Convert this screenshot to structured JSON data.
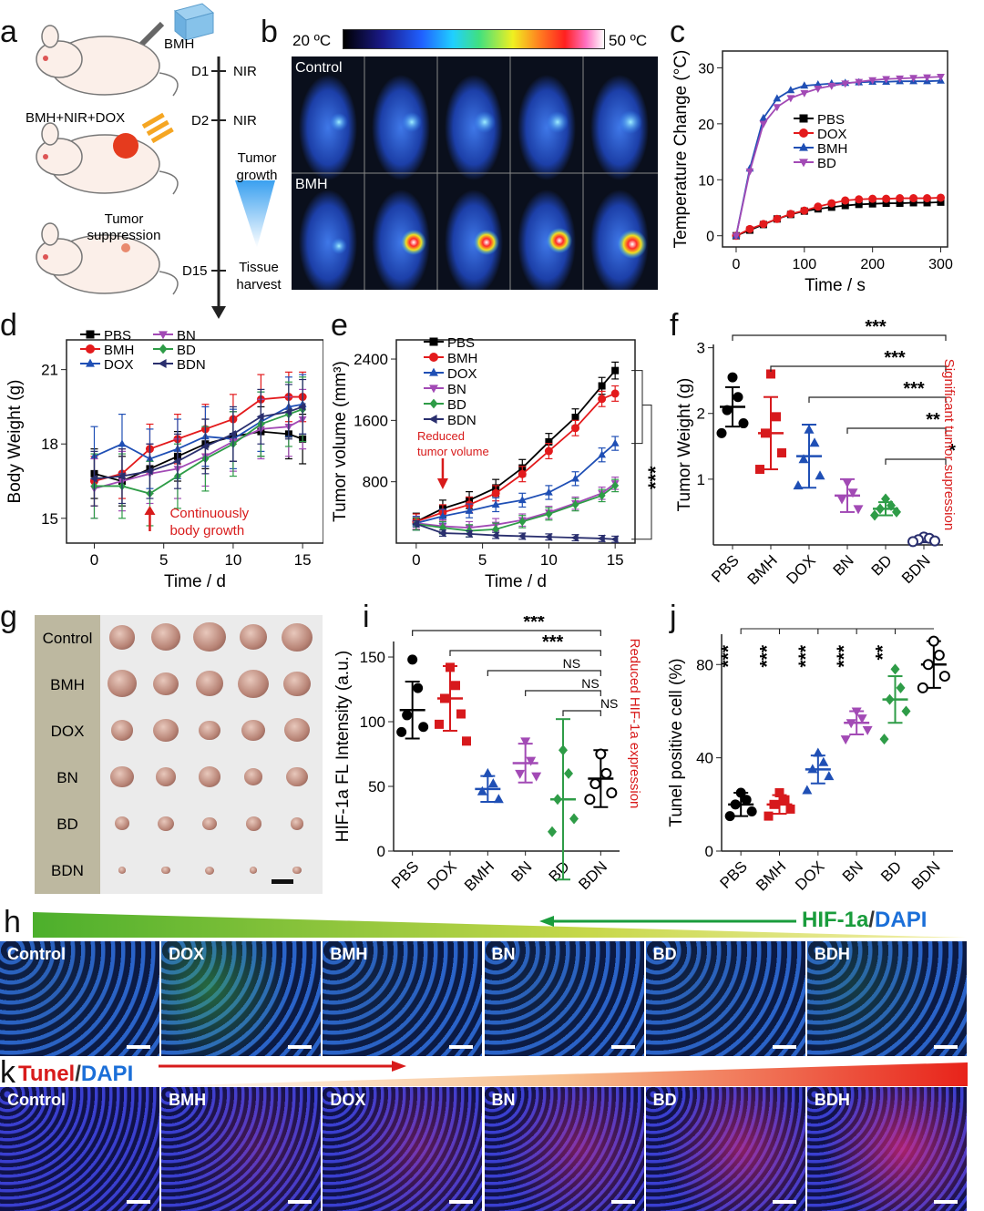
{
  "panel_letters": [
    "a",
    "b",
    "c",
    "d",
    "e",
    "f",
    "g",
    "h",
    "i",
    "j",
    "k"
  ],
  "panel_a": {
    "inject_label": "BMH",
    "group_label": "BMH+NIR+DOX",
    "suppression_label": "Tumor suppression",
    "timeline": [
      {
        "day": "D1",
        "event": "NIR"
      },
      {
        "day": "D2",
        "event": "NIR"
      },
      {
        "day": "D15",
        "event": "Tissue harvest"
      }
    ],
    "growth_label": "Tumor growth"
  },
  "panel_b": {
    "scale_min": "20 ºC",
    "scale_max": "50 ºC",
    "rows": [
      "Control",
      "BMH"
    ],
    "colors": {
      "cold": "#000000",
      "warm": "#ff2a2a",
      "hot": "#ffffff"
    }
  },
  "panel_g": {
    "rows": [
      "Control",
      "BMH",
      "DOX",
      "BN",
      "BD",
      "BDN"
    ],
    "tumor_sizes": [
      1.0,
      0.95,
      0.8,
      0.72,
      0.5,
      0.28
    ]
  },
  "panel_h": {
    "legend_a": "HIF-1a",
    "legend_sep": "/",
    "legend_b": "DAPI",
    "tiles": [
      "Control",
      "DOX",
      "BMH",
      "BN",
      "BD",
      "BDH"
    ]
  },
  "panel_k": {
    "legend_a": "Tunel",
    "legend_sep": "/",
    "legend_b": "DAPI",
    "tiles": [
      "Control",
      "BMH",
      "DOX",
      "BN",
      "BD",
      "BDH"
    ]
  },
  "chart_data": [
    {
      "id": "c",
      "type": "line",
      "xlabel": "Time / s",
      "ylabel": "Temperature Change (°C)",
      "xlim": [
        -20,
        310
      ],
      "ylim": [
        -2,
        33
      ],
      "xticks": [
        0,
        100,
        200,
        300
      ],
      "yticks": [
        0,
        10,
        20,
        30
      ],
      "legend_position": "middle-right",
      "x": [
        0,
        20,
        40,
        60,
        80,
        100,
        120,
        140,
        160,
        180,
        200,
        220,
        240,
        260,
        280,
        300
      ],
      "series": [
        {
          "name": "PBS",
          "color": "#000000",
          "marker": "square",
          "values": [
            0,
            1.0,
            2.0,
            3.0,
            3.8,
            4.4,
            4.8,
            5.1,
            5.4,
            5.6,
            5.7,
            5.8,
            5.8,
            5.9,
            5.9,
            6.0
          ]
        },
        {
          "name": "DOX",
          "color": "#e31a1c",
          "marker": "circle",
          "values": [
            0,
            1.2,
            2.1,
            3.0,
            3.9,
            4.5,
            5.2,
            5.8,
            6.3,
            6.5,
            6.6,
            6.6,
            6.7,
            6.7,
            6.7,
            6.8
          ]
        },
        {
          "name": "BMH",
          "color": "#1f4fb5",
          "marker": "triangle",
          "values": [
            0,
            12,
            21,
            24.5,
            26,
            26.8,
            27,
            27.2,
            27.3,
            27.4,
            27.5,
            27.5,
            27.6,
            27.6,
            27.6,
            27.7
          ]
        },
        {
          "name": "BD",
          "color": "#a24ab5",
          "marker": "triangle-down",
          "values": [
            0,
            11.5,
            20,
            23,
            24.6,
            25.5,
            26.3,
            26.8,
            27.2,
            27.5,
            27.8,
            28,
            28.1,
            28.2,
            28.3,
            28.4
          ]
        }
      ]
    },
    {
      "id": "d",
      "type": "line",
      "xlabel": "Time / d",
      "ylabel": "Body Weight (g)",
      "xlim": [
        -2,
        16.5
      ],
      "ylim": [
        14,
        22.2
      ],
      "xticks": [
        0,
        5,
        10,
        15
      ],
      "yticks": [
        15,
        18,
        21
      ],
      "legend_position": "top-left",
      "annotation": "Continuously body growth",
      "annotation_x": 4,
      "x": [
        0,
        2,
        4,
        6,
        8,
        10,
        12,
        14,
        15
      ],
      "series": [
        {
          "name": "PBS",
          "color": "#000000",
          "marker": "square",
          "values": [
            16.8,
            16.5,
            17.0,
            17.5,
            18.0,
            18.3,
            18.5,
            18.4,
            18.2
          ],
          "err": 1.0
        },
        {
          "name": "BMH",
          "color": "#e31a1c",
          "marker": "circle",
          "values": [
            16.5,
            16.8,
            17.8,
            18.2,
            18.6,
            19.0,
            19.8,
            19.9,
            19.9
          ],
          "err": 1.0
        },
        {
          "name": "DOX",
          "color": "#1f4fb5",
          "marker": "triangle",
          "values": [
            17.5,
            18.0,
            17.4,
            17.8,
            18.3,
            18.2,
            18.9,
            19.5,
            19.6
          ],
          "err": 1.2
        },
        {
          "name": "BN",
          "color": "#a24ab5",
          "marker": "triangle-down",
          "values": [
            16.2,
            16.5,
            16.8,
            17.0,
            17.5,
            18.1,
            18.6,
            18.7,
            19.0
          ],
          "err": 1.2
        },
        {
          "name": "BD",
          "color": "#2e9c47",
          "marker": "diamond",
          "values": [
            16.3,
            16.3,
            16.0,
            16.7,
            17.4,
            18.0,
            18.8,
            19.2,
            19.4
          ],
          "err": 1.3
        },
        {
          "name": "BDN",
          "color": "#2a2f6e",
          "marker": "triangle-left",
          "values": [
            16.6,
            16.7,
            16.9,
            17.3,
            17.9,
            18.4,
            19.1,
            19.3,
            19.5
          ],
          "err": 1.1
        }
      ]
    },
    {
      "id": "e",
      "type": "line",
      "xlabel": "Time / d",
      "ylabel": "Tumor volume (mm³)",
      "xlim": [
        -1.5,
        16.5
      ],
      "ylim": [
        0,
        2650
      ],
      "xticks": [
        0,
        5,
        10,
        15
      ],
      "yticks": [
        800,
        1600,
        2400
      ],
      "legend_position": "top-left",
      "annotation": "Reduced tumor volume",
      "annotation_x": 2,
      "significance": "***",
      "x": [
        0,
        2,
        4,
        6,
        8,
        10,
        12,
        14,
        15
      ],
      "series": [
        {
          "name": "PBS",
          "color": "#000000",
          "marker": "square",
          "values": [
            280,
            450,
            560,
            720,
            980,
            1320,
            1640,
            2050,
            2250
          ],
          "err": 110
        },
        {
          "name": "BMH",
          "color": "#e31a1c",
          "marker": "circle",
          "values": [
            280,
            400,
            500,
            650,
            900,
            1200,
            1500,
            1880,
            1950
          ],
          "err": 100
        },
        {
          "name": "DOX",
          "color": "#1f4fb5",
          "marker": "triangle",
          "values": [
            260,
            350,
            420,
            500,
            560,
            660,
            840,
            1150,
            1300
          ],
          "err": 90
        },
        {
          "name": "BN",
          "color": "#a24ab5",
          "marker": "triangle-down",
          "values": [
            260,
            220,
            200,
            240,
            300,
            400,
            520,
            650,
            780
          ],
          "err": 80
        },
        {
          "name": "BD",
          "color": "#2e9c47",
          "marker": "diamond",
          "values": [
            250,
            200,
            160,
            180,
            280,
            380,
            500,
            620,
            750
          ],
          "err": 80
        },
        {
          "name": "BDN",
          "color": "#2a2f6e",
          "marker": "triangle-left",
          "values": [
            250,
            130,
            120,
            100,
            90,
            80,
            70,
            60,
            50
          ],
          "err": 40
        }
      ]
    },
    {
      "id": "f",
      "type": "scatter",
      "xlabel": "",
      "ylabel": "Tumor Weight (g)",
      "categories": [
        "PBS",
        "BMH",
        "DOX",
        "BN",
        "BD",
        "BDN"
      ],
      "ylim": [
        0,
        3.05
      ],
      "yticks": [
        1,
        2,
        3
      ],
      "side_note": "Significant tumor supression",
      "colors": [
        "#000000",
        "#d7191c",
        "#1f4fb5",
        "#a24ab5",
        "#2e9c47",
        "#2a2f6e"
      ],
      "markers": [
        "circle",
        "square",
        "triangle",
        "triangle-down",
        "diamond",
        "circle-open"
      ],
      "mean": [
        2.1,
        1.7,
        1.35,
        0.75,
        0.55,
        0.08
      ],
      "sd": [
        0.3,
        0.55,
        0.48,
        0.25,
        0.1,
        0.04
      ],
      "points": [
        [
          2.55,
          2.25,
          2.05,
          1.85,
          1.7
        ],
        [
          2.6,
          1.95,
          1.7,
          1.4,
          1.15
        ],
        [
          1.75,
          1.55,
          1.3,
          1.05,
          0.9
        ],
        [
          0.95,
          0.8,
          0.7,
          0.55
        ],
        [
          0.7,
          0.6,
          0.55,
          0.5,
          0.45
        ],
        [
          0.12,
          0.1,
          0.08,
          0.06,
          0.05
        ]
      ],
      "brackets": [
        {
          "from": 0,
          "to": 5,
          "label": "***"
        },
        {
          "from": 1,
          "to": 5,
          "label": "***"
        },
        {
          "from": 2,
          "to": 5,
          "label": "***"
        },
        {
          "from": 3,
          "to": 5,
          "label": "**"
        },
        {
          "from": 4,
          "to": 5,
          "label": "*"
        }
      ]
    },
    {
      "id": "i",
      "type": "scatter",
      "xlabel": "",
      "ylabel": "HIF-1a FL Intensity (a.u.)",
      "categories": [
        "PBS",
        "DOX",
        "BMH",
        "BN",
        "BD",
        "BDN"
      ],
      "ylim": [
        0,
        162
      ],
      "yticks": [
        0,
        50,
        100,
        150
      ],
      "side_note": "Reduced HIF-1a expression",
      "colors": [
        "#000000",
        "#d7191c",
        "#1f4fb5",
        "#a24ab5",
        "#2e9c47",
        "#000000"
      ],
      "markers": [
        "circle",
        "square",
        "triangle",
        "triangle-down",
        "diamond",
        "circle-open"
      ],
      "mean": [
        109,
        118,
        48,
        68,
        40,
        56
      ],
      "sd": [
        22,
        25,
        10,
        15,
        62,
        22
      ],
      "points": [
        [
          148,
          126,
          105,
          96,
          92
        ],
        [
          142,
          128,
          118,
          106,
          98,
          85
        ],
        [
          60,
          52,
          46,
          40
        ],
        [
          85,
          70,
          60,
          58
        ],
        [
          78,
          60,
          40,
          25,
          15
        ],
        [
          75,
          60,
          52,
          45,
          40
        ]
      ],
      "brackets": [
        {
          "from": 0,
          "to": 5,
          "label": "***"
        },
        {
          "from": 1,
          "to": 5,
          "label": "***"
        },
        {
          "from": 2,
          "to": 5,
          "label": "NS"
        },
        {
          "from": 3,
          "to": 5,
          "label": "NS"
        },
        {
          "from": 4,
          "to": 5,
          "label": "NS"
        }
      ]
    },
    {
      "id": "j",
      "type": "scatter",
      "xlabel": "",
      "ylabel": "Tunel positive cell (%)",
      "categories": [
        "PBS",
        "BMH",
        "DOX",
        "BN",
        "BD",
        "BDN"
      ],
      "ylim": [
        0,
        93
      ],
      "yticks": [
        0,
        40,
        80
      ],
      "colors": [
        "#000000",
        "#d7191c",
        "#1f4fb5",
        "#a24ab5",
        "#2e9c47",
        "#000000"
      ],
      "markers": [
        "circle",
        "square",
        "triangle",
        "triangle-down",
        "diamond",
        "circle-open"
      ],
      "mean": [
        20,
        20,
        35,
        55,
        65,
        80
      ],
      "sd": [
        5,
        4,
        6,
        5,
        10,
        10
      ],
      "points": [
        [
          25,
          22,
          20,
          17,
          15
        ],
        [
          25,
          22,
          20,
          18,
          15
        ],
        [
          42,
          38,
          35,
          32,
          26
        ],
        [
          60,
          57,
          55,
          52,
          48
        ],
        [
          78,
          70,
          65,
          60,
          48
        ],
        [
          90,
          84,
          80,
          75,
          70
        ]
      ],
      "stars": [
        "***",
        "***",
        "***",
        "***",
        "**"
      ]
    }
  ]
}
